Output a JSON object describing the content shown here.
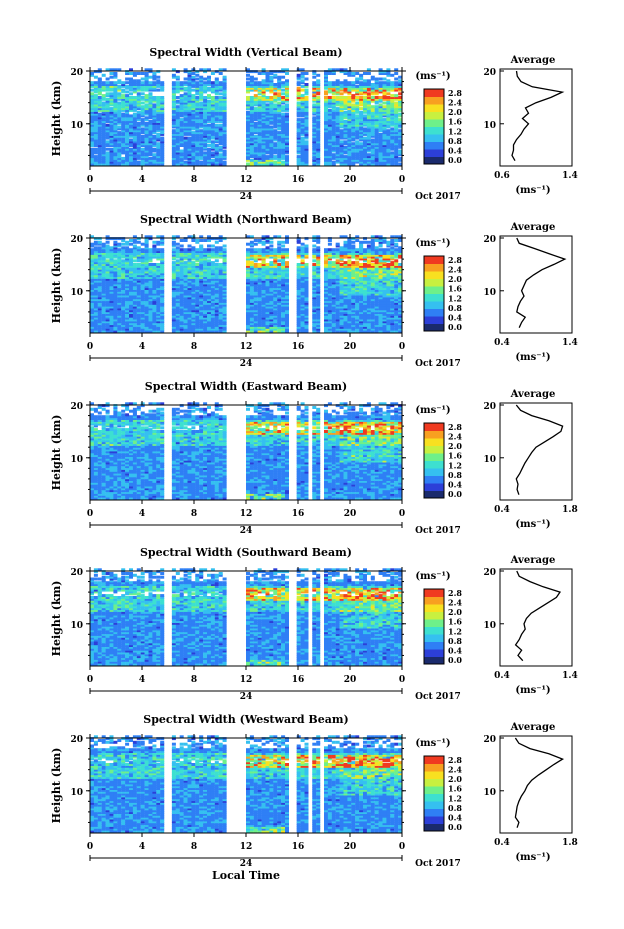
{
  "figure": {
    "date_label": "Oct 2017",
    "xlabel": "Local Time",
    "day_label": "24",
    "colorbar_unit": "(ms⁻¹)",
    "colorbar_ticks": [
      "0.0",
      "0.4",
      "0.8",
      "1.2",
      "1.6",
      "2.0",
      "2.4",
      "2.8"
    ],
    "x_ticks": [
      "0",
      "4",
      "8",
      "12",
      "16",
      "20",
      "0"
    ],
    "y_ticks": [
      "10",
      "20"
    ],
    "ylabel": "Height (km)",
    "avg_title": "Average",
    "avg_xlabel": "(ms⁻¹)",
    "colors": [
      "#1a2a6c",
      "#2c3fd8",
      "#2f7ff5",
      "#35c0f0",
      "#3de0d0",
      "#6ef08a",
      "#c8f040",
      "#f8e020",
      "#f8a020",
      "#f03a20"
    ]
  },
  "chart_data": [
    {
      "type": "heatmap",
      "title": "Spectral Width (Vertical Beam)",
      "xlabel": "",
      "ylabel": "Height (km)",
      "xlim": [
        0,
        24
      ],
      "ylim": [
        2,
        20
      ],
      "colorbar_range": [
        0,
        3.0
      ],
      "data_gaps_hours": [
        [
          10.3,
          11.9
        ],
        [
          15.3,
          15.7
        ],
        [
          16.8,
          17.0
        ],
        [
          17.5,
          17.8
        ]
      ],
      "average_profile": {
        "xlim": [
          0.6,
          1.4
        ],
        "xticks": [
          "0.6",
          "1.4"
        ],
        "height_km": [
          3,
          4,
          5,
          6,
          7,
          8,
          9,
          10,
          11,
          12,
          13,
          14,
          15,
          16,
          17,
          18,
          19,
          20
        ],
        "value": [
          0.72,
          0.68,
          0.7,
          0.7,
          0.74,
          0.8,
          0.84,
          0.9,
          0.82,
          0.9,
          0.86,
          1.0,
          1.2,
          1.35,
          0.95,
          0.8,
          0.75,
          0.74
        ]
      }
    },
    {
      "type": "heatmap",
      "title": "Spectral Width (Northward Beam)",
      "xlabel": "",
      "ylabel": "Height (km)",
      "xlim": [
        0,
        24
      ],
      "ylim": [
        2,
        20
      ],
      "colorbar_range": [
        0,
        3.0
      ],
      "data_gaps_hours": [
        [
          10.3,
          11.9
        ],
        [
          15.3,
          15.7
        ],
        [
          16.8,
          17.0
        ],
        [
          17.5,
          17.8
        ]
      ],
      "average_profile": {
        "xlim": [
          0.4,
          1.4
        ],
        "xticks": [
          "0.4",
          "1.4"
        ],
        "height_km": [
          3,
          4,
          5,
          6,
          7,
          8,
          9,
          10,
          11,
          12,
          13,
          14,
          15,
          16,
          17,
          18,
          19,
          20
        ],
        "value": [
          0.62,
          0.66,
          0.72,
          0.58,
          0.6,
          0.64,
          0.7,
          0.66,
          0.7,
          0.74,
          0.86,
          1.0,
          1.2,
          1.38,
          1.12,
          0.88,
          0.62,
          0.58
        ]
      }
    },
    {
      "type": "heatmap",
      "title": "Spectral Width (Eastward Beam)",
      "xlabel": "",
      "ylabel": "Height (km)",
      "xlim": [
        0,
        24
      ],
      "ylim": [
        2,
        20
      ],
      "colorbar_range": [
        0,
        3.0
      ],
      "data_gaps_hours": [
        [
          10.3,
          11.9
        ],
        [
          15.3,
          15.7
        ],
        [
          16.8,
          17.0
        ],
        [
          17.5,
          17.8
        ]
      ],
      "average_profile": {
        "xlim": [
          0.4,
          1.8
        ],
        "xticks": [
          "0.4",
          "1.8"
        ],
        "height_km": [
          3,
          4,
          5,
          6,
          7,
          8,
          9,
          10,
          11,
          12,
          13,
          14,
          15,
          16,
          17,
          18,
          19,
          20
        ],
        "value": [
          0.7,
          0.66,
          0.68,
          0.64,
          0.72,
          0.78,
          0.84,
          0.92,
          1.0,
          1.1,
          1.3,
          1.5,
          1.68,
          1.72,
          1.4,
          1.0,
          0.74,
          0.64
        ]
      }
    },
    {
      "type": "heatmap",
      "title": "Spectral Width (Southward Beam)",
      "xlabel": "",
      "ylabel": "Height (km)",
      "xlim": [
        0,
        24
      ],
      "ylim": [
        2,
        20
      ],
      "colorbar_range": [
        0,
        3.0
      ],
      "data_gaps_hours": [
        [
          10.3,
          11.9
        ],
        [
          15.3,
          15.7
        ],
        [
          16.8,
          17.0
        ],
        [
          17.5,
          17.8
        ]
      ],
      "average_profile": {
        "xlim": [
          0.4,
          1.4
        ],
        "xticks": [
          "0.4",
          "1.4"
        ],
        "height_km": [
          3,
          4,
          5,
          6,
          7,
          8,
          9,
          10,
          11,
          12,
          13,
          14,
          15,
          16,
          17,
          18,
          19,
          20
        ],
        "value": [
          0.68,
          0.6,
          0.66,
          0.56,
          0.62,
          0.66,
          0.72,
          0.7,
          0.74,
          0.82,
          0.96,
          1.1,
          1.24,
          1.3,
          1.02,
          0.8,
          0.62,
          0.58
        ]
      }
    },
    {
      "type": "heatmap",
      "title": "Spectral Width (Westward Beam)",
      "xlabel": "Local Time",
      "ylabel": "Height (km)",
      "xlim": [
        0,
        24
      ],
      "ylim": [
        2,
        20
      ],
      "colorbar_range": [
        0,
        3.0
      ],
      "data_gaps_hours": [
        [
          10.3,
          11.9
        ],
        [
          15.3,
          15.7
        ],
        [
          16.8,
          17.0
        ],
        [
          17.5,
          17.8
        ]
      ],
      "average_profile": {
        "xlim": [
          0.4,
          1.8
        ],
        "xticks": [
          "0.4",
          "1.8"
        ],
        "height_km": [
          3,
          4,
          5,
          6,
          7,
          8,
          9,
          10,
          11,
          12,
          13,
          14,
          15,
          16,
          17,
          18,
          19,
          20
        ],
        "value": [
          0.66,
          0.7,
          0.62,
          0.64,
          0.66,
          0.7,
          0.76,
          0.84,
          0.9,
          1.0,
          1.16,
          1.34,
          1.52,
          1.72,
          1.4,
          0.96,
          0.7,
          0.62
        ]
      }
    }
  ]
}
